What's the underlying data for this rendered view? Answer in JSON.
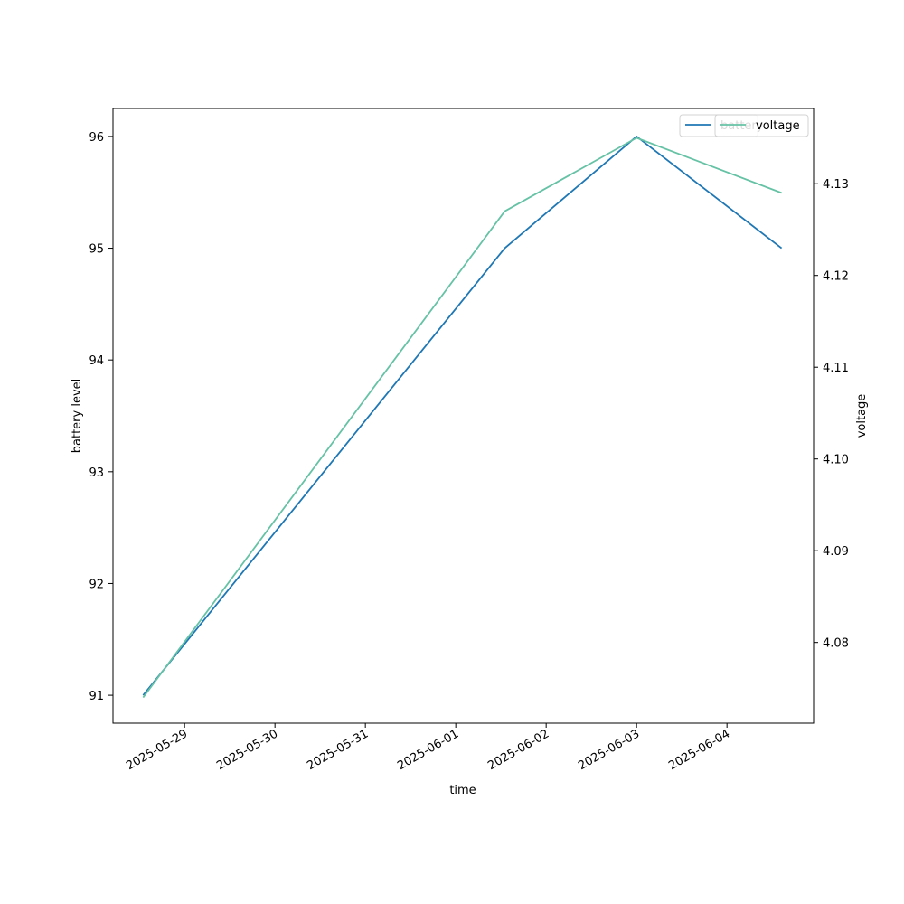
{
  "chart_data": {
    "type": "line",
    "xlabel": "time",
    "ylabel_left": "battery level",
    "ylabel_right": "voltage",
    "x_ticks": [
      "2025-05-29",
      "2025-05-30",
      "2025-05-31",
      "2025-06-01",
      "2025-06-02",
      "2025-06-03",
      "2025-06-04"
    ],
    "x_range": [
      "2025-05-28T05:00",
      "2025-06-04T23:00"
    ],
    "left_axis": {
      "range": [
        90.75,
        96.25
      ],
      "ticks": [
        91,
        92,
        93,
        94,
        95,
        96
      ]
    },
    "right_axis": {
      "range": [
        4.0712,
        4.1382
      ],
      "ticks": [
        "4.08",
        "4.09",
        "4.10",
        "4.11",
        "4.12",
        "4.13"
      ]
    },
    "series": [
      {
        "name": "battery",
        "axis": "left",
        "color": "#1f77b4",
        "points": [
          {
            "x": "2025-05-28T13:00",
            "y": 91
          },
          {
            "x": "2025-06-01T13:00",
            "y": 95
          },
          {
            "x": "2025-06-03T00:00",
            "y": 96
          },
          {
            "x": "2025-06-04T14:30",
            "y": 95
          }
        ]
      },
      {
        "name": "voltage",
        "axis": "right",
        "color": "#66c2a5",
        "points": [
          {
            "x": "2025-05-28T13:00",
            "y": 4.074
          },
          {
            "x": "2025-06-01T13:00",
            "y": 4.127
          },
          {
            "x": "2025-06-03T00:00",
            "y": 4.135
          },
          {
            "x": "2025-06-04T14:30",
            "y": 4.129
          }
        ]
      }
    ],
    "legend": {
      "placement": "top-right"
    },
    "grid": false
  }
}
